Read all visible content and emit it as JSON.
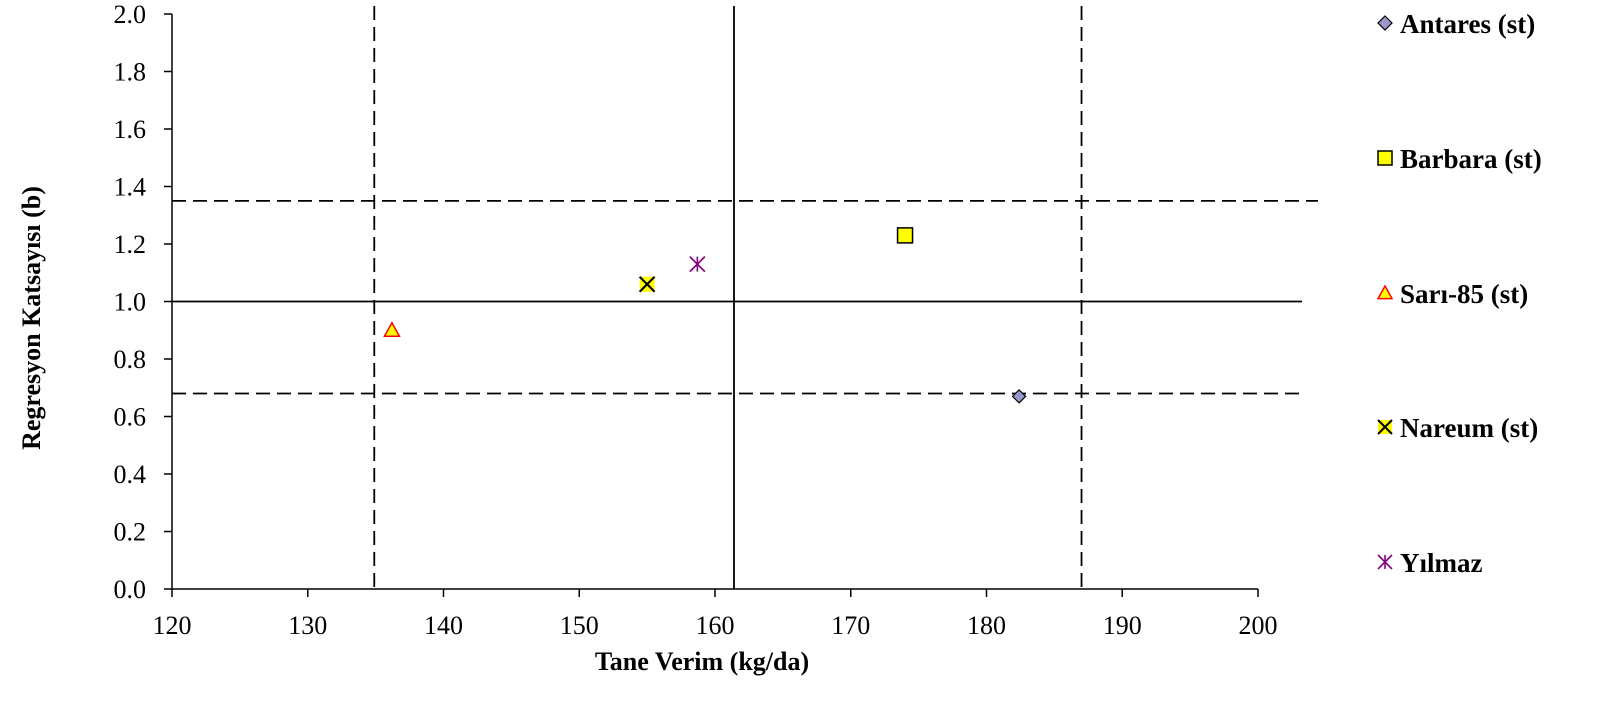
{
  "chart_data": {
    "type": "scatter",
    "title": "",
    "xlabel": "Tane Verim (kg/da)",
    "ylabel": "Regresyon Katsayısı (b)",
    "xlim": [
      120,
      200
    ],
    "ylim": [
      0.0,
      2.0
    ],
    "x_ticks": [
      "120",
      "130",
      "140",
      "150",
      "160",
      "170",
      "180",
      "190",
      "200"
    ],
    "y_ticks": [
      "0.0",
      "0.2",
      "0.4",
      "0.6",
      "0.8",
      "1.0",
      "1.2",
      "1.4",
      "1.6",
      "1.8",
      "2.0"
    ],
    "grid": false,
    "legend_position": "right",
    "series": [
      {
        "name": "Antares (st)",
        "marker": "diamond",
        "color": "#9999cc",
        "x": [
          182.4
        ],
        "y": [
          0.67
        ]
      },
      {
        "name": "Barbara (st)",
        "marker": "square",
        "color": "#ffff00",
        "x": [
          174.0
        ],
        "y": [
          1.23
        ]
      },
      {
        "name": "Sarı-85 (st)",
        "marker": "triangle",
        "color": "#ffff00",
        "stroke": "#ff0000",
        "x": [
          136.2
        ],
        "y": [
          0.9
        ]
      },
      {
        "name": "Nareum (st)",
        "marker": "x-square",
        "color": "#ffff00",
        "x": [
          155.0
        ],
        "y": [
          1.06
        ]
      },
      {
        "name": "Yılmaz",
        "marker": "asterisk",
        "color": "#800080",
        "x": [
          158.7
        ],
        "y": [
          1.13
        ]
      }
    ],
    "reference_lines": [
      {
        "orientation": "vertical",
        "value": 161.4,
        "style": "solid"
      },
      {
        "orientation": "vertical",
        "value": 134.9,
        "style": "dashed"
      },
      {
        "orientation": "vertical",
        "value": 187.0,
        "style": "dashed"
      },
      {
        "orientation": "horizontal",
        "value": 1.0,
        "style": "solid"
      },
      {
        "orientation": "horizontal",
        "value": 1.35,
        "style": "dashed"
      },
      {
        "orientation": "horizontal",
        "value": 0.68,
        "style": "dashed"
      }
    ]
  }
}
